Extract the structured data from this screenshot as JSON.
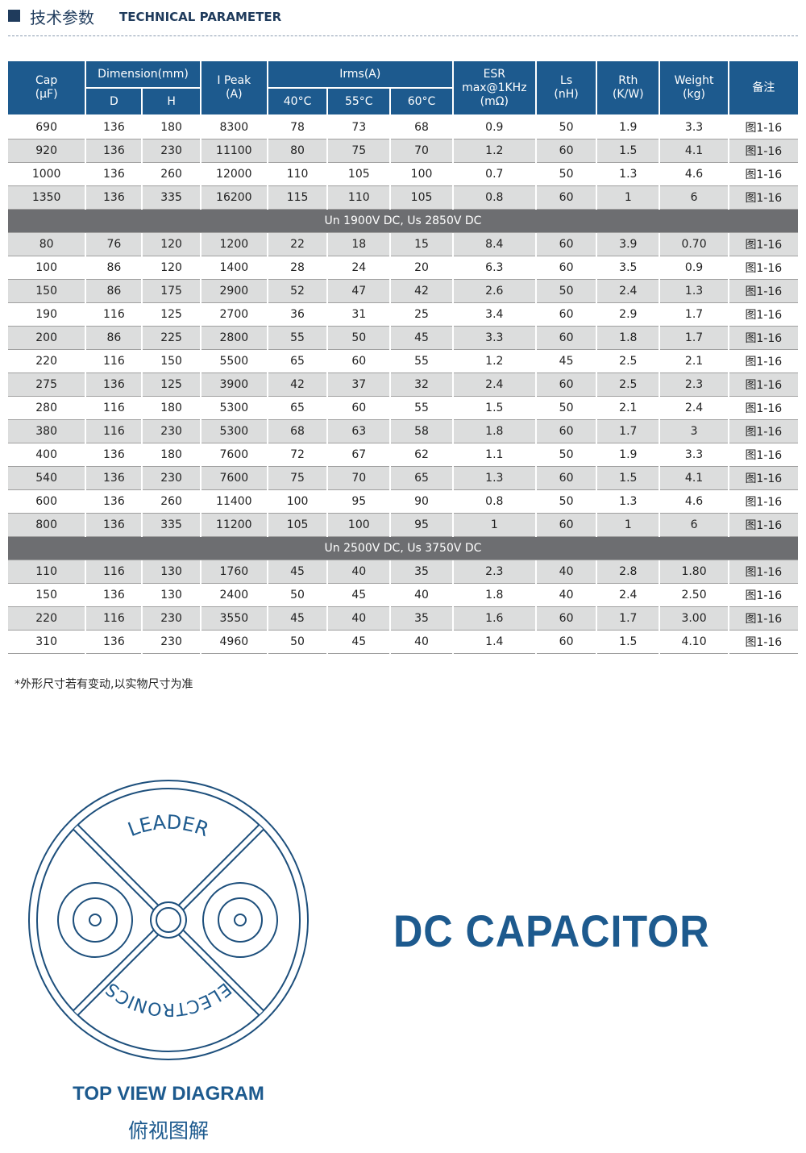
{
  "header": {
    "title": "技术参数",
    "subtitle": "TECHNICAL PARAMETER"
  },
  "table": {
    "header": {
      "cap": [
        "Cap",
        "(μF)"
      ],
      "dimension": "Dimension(mm)",
      "d": "D",
      "h": "H",
      "ipeak": [
        "I Peak",
        "(A)"
      ],
      "irms": "Irms(A)",
      "t40": "40°C",
      "t55": "55°C",
      "t60": "60°C",
      "esr": [
        "ESR",
        "max@1KHz",
        "(mΩ)"
      ],
      "ls": [
        "Ls",
        "(nH)"
      ],
      "rth": [
        "Rth",
        "(K/W)"
      ],
      "weight": [
        "Weight",
        "(kg)"
      ],
      "remark": "备注"
    },
    "groups": [
      {
        "rows": [
          [
            "690",
            "136",
            "180",
            "8300",
            "78",
            "73",
            "68",
            "0.9",
            "50",
            "1.9",
            "3.3",
            "图1-16"
          ],
          [
            "920",
            "136",
            "230",
            "11100",
            "80",
            "75",
            "70",
            "1.2",
            "60",
            "1.5",
            "4.1",
            "图1-16"
          ],
          [
            "1000",
            "136",
            "260",
            "12000",
            "110",
            "105",
            "100",
            "0.7",
            "50",
            "1.3",
            "4.6",
            "图1-16"
          ],
          [
            "1350",
            "136",
            "335",
            "16200",
            "115",
            "110",
            "105",
            "0.8",
            "60",
            "1",
            "6",
            "图1-16"
          ]
        ]
      },
      {
        "section": "Un 1900V DC, Us 2850V DC",
        "rows": [
          [
            "80",
            "76",
            "120",
            "1200",
            "22",
            "18",
            "15",
            "8.4",
            "60",
            "3.9",
            "0.70",
            "图1-16"
          ],
          [
            "100",
            "86",
            "120",
            "1400",
            "28",
            "24",
            "20",
            "6.3",
            "60",
            "3.5",
            "0.9",
            "图1-16"
          ],
          [
            "150",
            "86",
            "175",
            "2900",
            "52",
            "47",
            "42",
            "2.6",
            "50",
            "2.4",
            "1.3",
            "图1-16"
          ],
          [
            "190",
            "116",
            "125",
            "2700",
            "36",
            "31",
            "25",
            "3.4",
            "60",
            "2.9",
            "1.7",
            "图1-16"
          ],
          [
            "200",
            "86",
            "225",
            "2800",
            "55",
            "50",
            "45",
            "3.3",
            "60",
            "1.8",
            "1.7",
            "图1-16"
          ],
          [
            "220",
            "116",
            "150",
            "5500",
            "65",
            "60",
            "55",
            "1.2",
            "45",
            "2.5",
            "2.1",
            "图1-16"
          ],
          [
            "275",
            "136",
            "125",
            "3900",
            "42",
            "37",
            "32",
            "2.4",
            "60",
            "2.5",
            "2.3",
            "图1-16"
          ],
          [
            "280",
            "116",
            "180",
            "5300",
            "65",
            "60",
            "55",
            "1.5",
            "50",
            "2.1",
            "2.4",
            "图1-16"
          ],
          [
            "380",
            "116",
            "230",
            "5300",
            "68",
            "63",
            "58",
            "1.8",
            "60",
            "1.7",
            "3",
            "图1-16"
          ],
          [
            "400",
            "136",
            "180",
            "7600",
            "72",
            "67",
            "62",
            "1.1",
            "50",
            "1.9",
            "3.3",
            "图1-16"
          ],
          [
            "540",
            "136",
            "230",
            "7600",
            "75",
            "70",
            "65",
            "1.3",
            "60",
            "1.5",
            "4.1",
            "图1-16"
          ],
          [
            "600",
            "136",
            "260",
            "11400",
            "100",
            "95",
            "90",
            "0.8",
            "50",
            "1.3",
            "4.6",
            "图1-16"
          ],
          [
            "800",
            "136",
            "335",
            "11200",
            "105",
            "100",
            "95",
            "1",
            "60",
            "1",
            "6",
            "图1-16"
          ]
        ]
      },
      {
        "section": "Un 2500V DC, Us 3750V DC",
        "rows": [
          [
            "110",
            "116",
            "130",
            "1760",
            "45",
            "40",
            "35",
            "2.3",
            "40",
            "2.8",
            "1.80",
            "图1-16"
          ],
          [
            "150",
            "136",
            "130",
            "2400",
            "50",
            "45",
            "40",
            "1.8",
            "40",
            "2.4",
            "2.50",
            "图1-16"
          ],
          [
            "220",
            "116",
            "230",
            "3550",
            "45",
            "40",
            "35",
            "1.6",
            "60",
            "1.7",
            "3.00",
            "图1-16"
          ],
          [
            "310",
            "136",
            "230",
            "4960",
            "50",
            "45",
            "40",
            "1.4",
            "60",
            "1.5",
            "4.10",
            "图1-16"
          ]
        ]
      }
    ]
  },
  "note": "*外形尺寸若有变动,以实物尺寸为准",
  "diagram": {
    "top_text": "LEADER",
    "bottom_text": "ELECTRONICS",
    "product": "DC CAPACITOR",
    "caption": "TOP VIEW DIAGRAM",
    "caption_cn": "俯视图解"
  }
}
